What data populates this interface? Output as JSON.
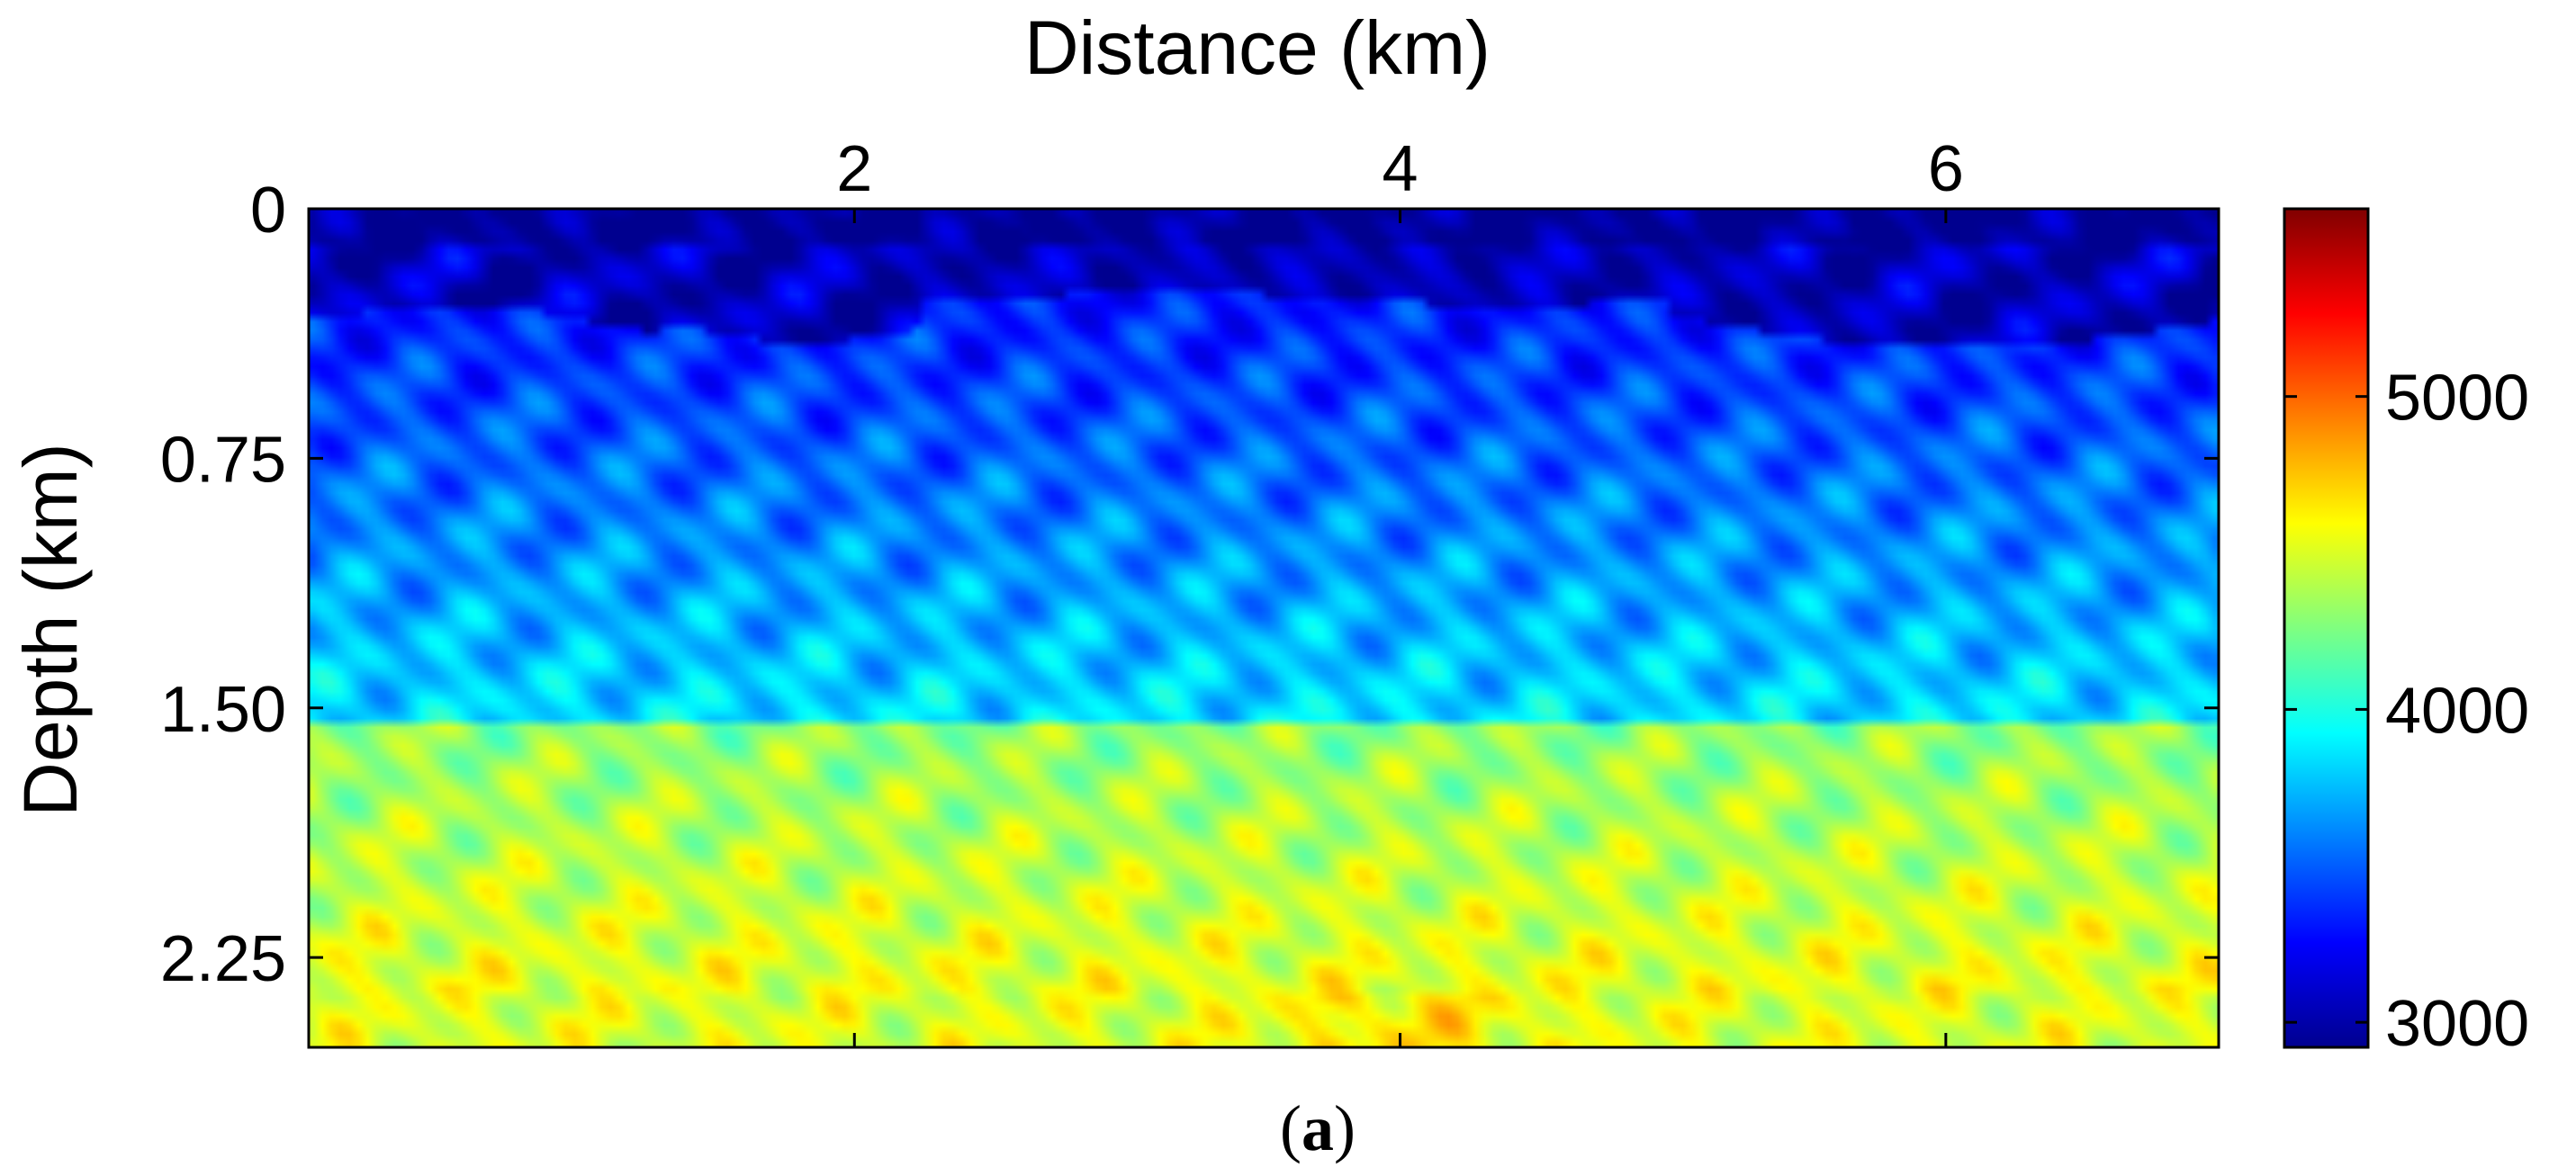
{
  "chart_data": {
    "type": "heatmap",
    "title": "",
    "xlabel": "Distance (km)",
    "ylabel": "Depth (km)",
    "x_axis_position": "top",
    "xlim": [
      0.0,
      7.0
    ],
    "ylim": [
      0.0,
      2.52
    ],
    "x_ticks": [
      2,
      4,
      6
    ],
    "x_tick_labels": [
      "2",
      "4",
      "6"
    ],
    "y_ticks": [
      0,
      0.75,
      1.5,
      2.25
    ],
    "y_tick_labels": [
      "0",
      "0.75",
      "1.50",
      "2.25"
    ],
    "colormap": "jet",
    "colorbar": {
      "range": [
        2920,
        5600
      ],
      "ticks": [
        3000,
        4000,
        5000
      ],
      "tick_labels": [
        "3000",
        "4000",
        "5000"
      ]
    },
    "grid": false,
    "caption": {
      "open": "(",
      "letter": "a",
      "close": ")"
    },
    "colors": {
      "jet": [
        "#00008f",
        "#0000ff",
        "#00ffff",
        "#ffff00",
        "#ff0000",
        "#800000"
      ],
      "axis": "#000000",
      "background": "#ffffff"
    }
  }
}
